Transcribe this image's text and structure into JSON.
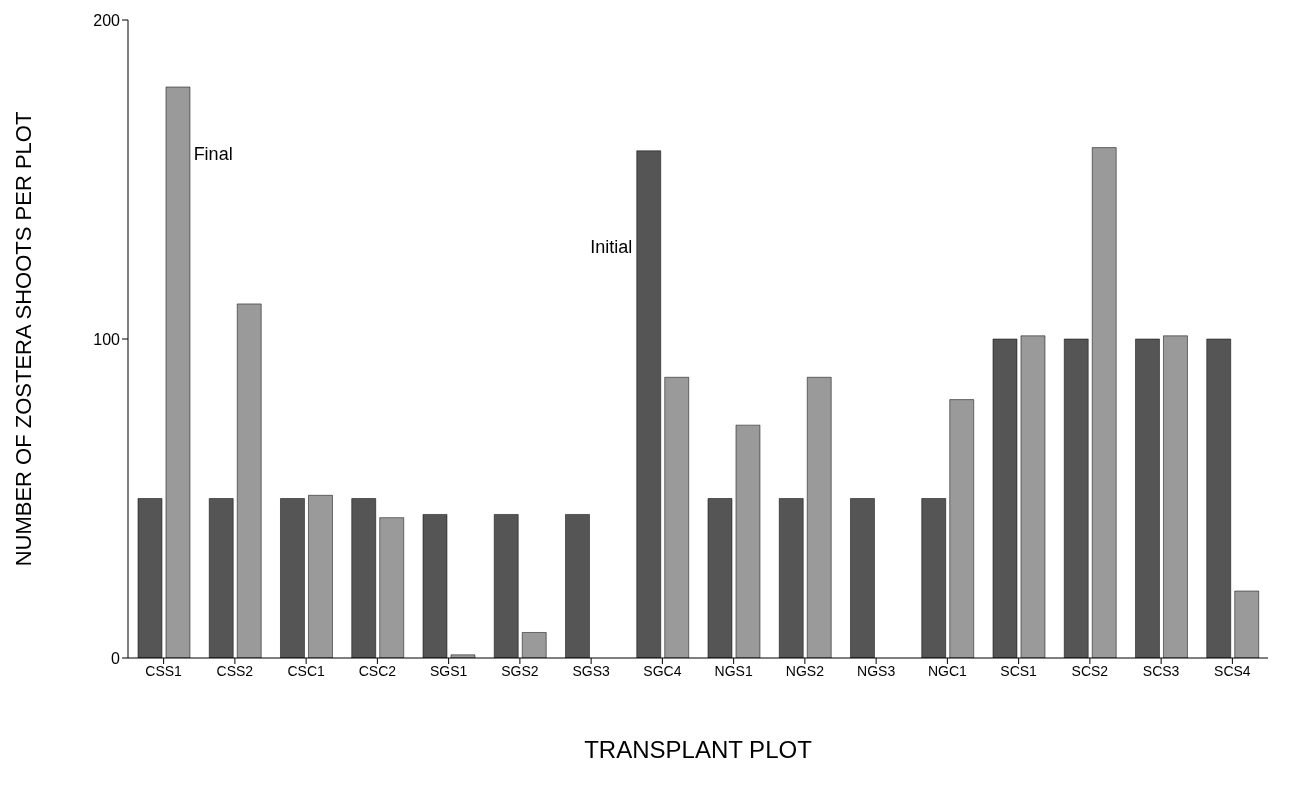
{
  "chart_data": {
    "type": "bar",
    "xlabel": "TRANSPLANT PLOT",
    "ylabel": "NUMBER OF ZOSTERA SHOOTS PER PLOT",
    "categories": [
      "CSS1",
      "CSS2",
      "CSC1",
      "CSC2",
      "SGS1",
      "SGS2",
      "SGS3",
      "SGC4",
      "NGS1",
      "NGS2",
      "NGS3",
      "NGC1",
      "SCS1",
      "SCS2",
      "SCS3",
      "SCS4"
    ],
    "series": [
      {
        "color": "#555555",
        "values": [
          50,
          50,
          50,
          50,
          45,
          45,
          45,
          159,
          50,
          50,
          50,
          50,
          100,
          100,
          100,
          100
        ]
      },
      {
        "color": "#9a9a9a",
        "values": [
          179,
          111,
          51,
          44,
          1,
          8,
          0,
          88,
          73,
          88,
          0,
          81,
          101,
          160,
          101,
          21
        ]
      }
    ],
    "ylim": [
      0,
      200
    ],
    "yticks": [
      0,
      100,
      200
    ],
    "grid": false,
    "legend": false,
    "annotations": [
      {
        "text": "Final",
        "x": "CSS1",
        "y": 158
      },
      {
        "text": "Initial",
        "x": "SGC4",
        "y": 129
      }
    ]
  }
}
